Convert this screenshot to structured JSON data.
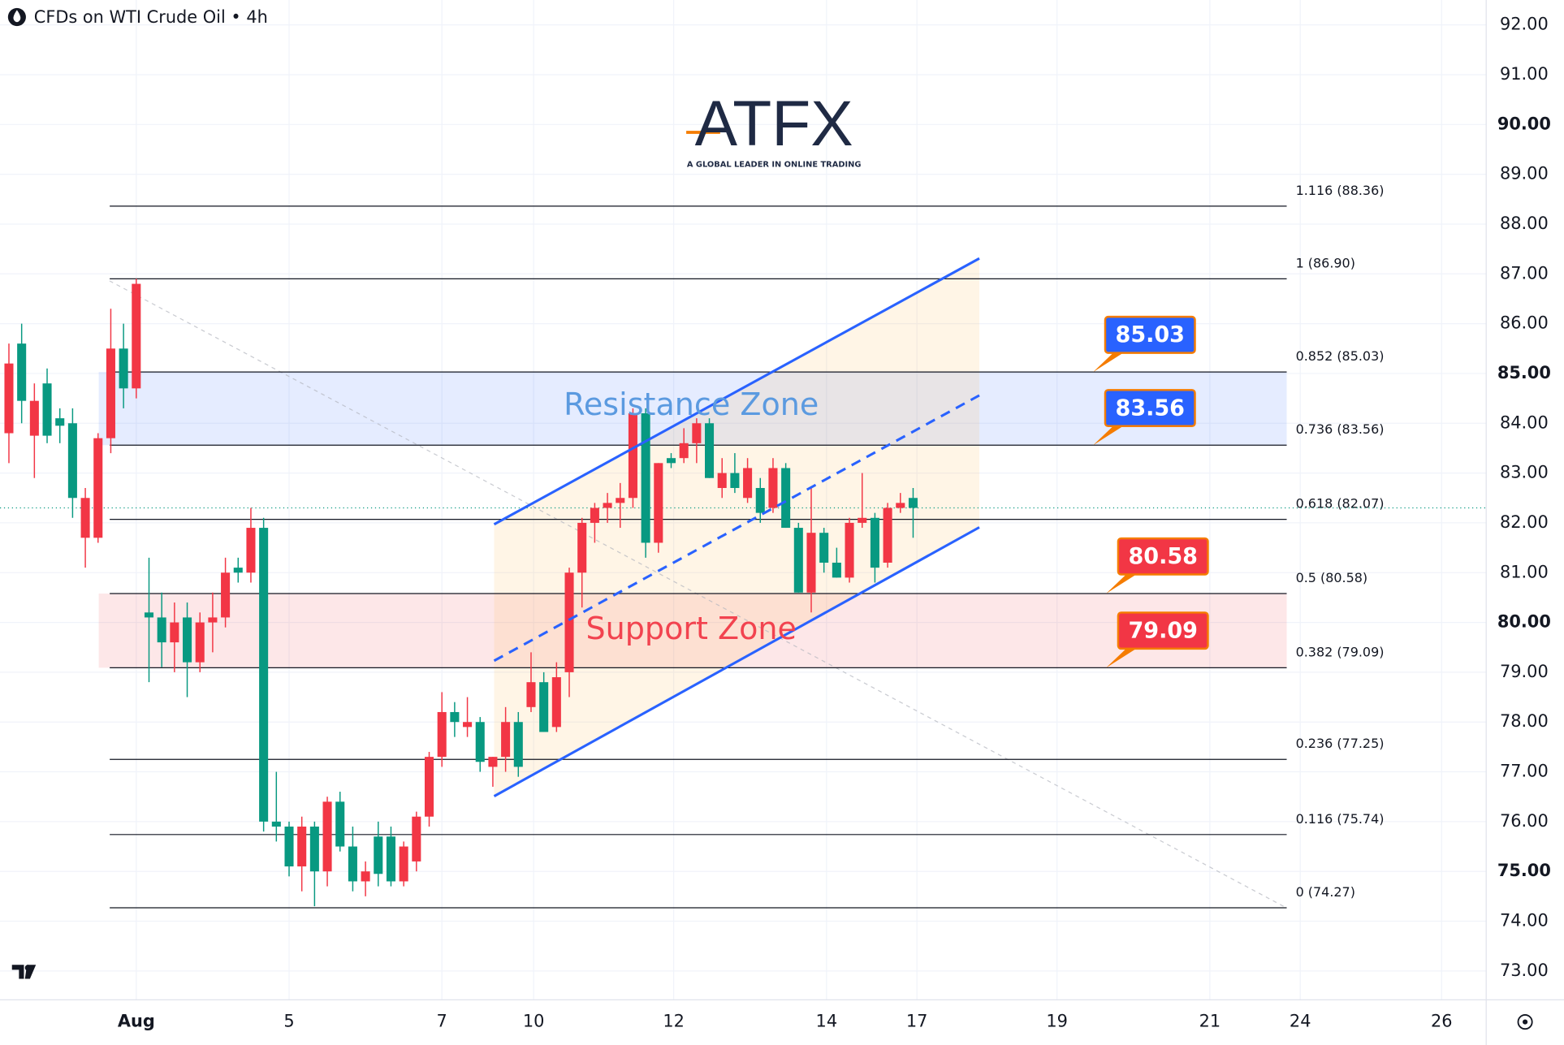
{
  "chart_data": {
    "type": "candlestick",
    "title": "CFDs on WTI Crude Oil • 4h",
    "logo": {
      "name": "ATFX",
      "tagline": "A GLOBAL LEADER IN ONLINE TRADING"
    },
    "up_color": "#f23645",
    "down_color": "#089981",
    "open": [
      83.8,
      85.6,
      83.75,
      84.8,
      84.1,
      84.0,
      81.7,
      81.7,
      83.7,
      85.5,
      84.7,
      80.2,
      80.1,
      79.6,
      80.1,
      79.2,
      80.0,
      80.1,
      81.1,
      81.0,
      81.9,
      76.0,
      75.9,
      75.1,
      75.9,
      75.0,
      76.4,
      75.5,
      74.8,
      75.7,
      75.7,
      74.8,
      75.2,
      76.1,
      77.3,
      78.2,
      77.9,
      78.0,
      77.1,
      77.3,
      78.0,
      78.3,
      78.8,
      77.9,
      79.0,
      81.0,
      82.0,
      82.3,
      82.4,
      82.5,
      84.2,
      81.6,
      83.3,
      83.3,
      83.6,
      84.0,
      82.7,
      83.0,
      82.5,
      82.7,
      82.3,
      83.1,
      81.9,
      80.6,
      81.8,
      81.2,
      80.9,
      82.0,
      82.1,
      81.2,
      82.3,
      82.5
    ],
    "high": [
      85.6,
      86.0,
      84.8,
      85.1,
      84.3,
      84.3,
      82.7,
      83.8,
      86.3,
      86.0,
      86.9,
      81.3,
      80.6,
      80.4,
      80.4,
      80.2,
      80.6,
      81.3,
      81.3,
      82.3,
      82.1,
      77.0,
      76.0,
      76.1,
      76.0,
      76.5,
      76.6,
      75.9,
      75.2,
      76.0,
      75.9,
      75.6,
      76.2,
      77.4,
      78.6,
      78.4,
      78.5,
      78.1,
      77.3,
      78.3,
      78.2,
      79.4,
      79.0,
      79.2,
      81.1,
      82.1,
      82.4,
      82.6,
      82.8,
      84.3,
      84.3,
      83.2,
      83.4,
      83.9,
      84.1,
      84.1,
      83.3,
      83.4,
      83.3,
      82.9,
      83.3,
      83.2,
      82.0,
      82.7,
      81.9,
      81.5,
      82.1,
      83.0,
      82.2,
      82.4,
      82.6,
      82.7
    ],
    "low": [
      83.2,
      84.0,
      82.9,
      83.6,
      83.6,
      82.1,
      81.1,
      81.6,
      83.4,
      84.3,
      84.5,
      78.8,
      79.1,
      79.0,
      78.5,
      79.0,
      79.4,
      79.9,
      80.8,
      80.8,
      75.8,
      75.6,
      74.9,
      74.6,
      74.3,
      74.7,
      75.4,
      74.6,
      74.5,
      74.7,
      74.7,
      74.7,
      75.0,
      75.9,
      77.1,
      77.7,
      77.7,
      77.0,
      76.7,
      77.0,
      76.9,
      78.2,
      77.8,
      77.8,
      78.5,
      80.3,
      81.6,
      82.0,
      81.9,
      82.3,
      81.3,
      81.4,
      83.1,
      83.2,
      83.2,
      82.9,
      82.5,
      82.6,
      82.4,
      82.0,
      82.2,
      81.9,
      80.6,
      80.2,
      81.0,
      80.9,
      80.8,
      81.9,
      80.8,
      81.1,
      82.2,
      81.7
    ],
    "close": [
      85.2,
      84.45,
      84.45,
      83.75,
      83.95,
      82.5,
      82.5,
      83.7,
      85.5,
      84.7,
      86.8,
      80.1,
      79.6,
      80.0,
      79.2,
      80.0,
      80.1,
      81.0,
      81.0,
      81.9,
      76.0,
      75.9,
      75.1,
      75.9,
      75.0,
      76.4,
      75.5,
      74.8,
      75.0,
      74.95,
      74.8,
      75.5,
      76.1,
      77.3,
      78.2,
      78.0,
      78.0,
      77.2,
      77.3,
      78.0,
      77.1,
      78.8,
      77.8,
      78.9,
      81.0,
      82.0,
      82.3,
      82.4,
      82.5,
      84.2,
      81.6,
      83.2,
      83.2,
      83.6,
      84.0,
      82.9,
      83.0,
      82.7,
      83.1,
      82.2,
      83.1,
      81.9,
      80.6,
      81.8,
      81.2,
      80.9,
      82.0,
      82.1,
      81.1,
      82.3,
      82.4,
      82.3
    ],
    "last_price": 82.3,
    "fib_levels": [
      {
        "value": 88.36,
        "label": "1.116 (88.36)"
      },
      {
        "value": 86.9,
        "label": "1 (86.90)"
      },
      {
        "value": 85.03,
        "label": "0.852 (85.03)"
      },
      {
        "value": 83.56,
        "label": "0.736 (83.56)"
      },
      {
        "value": 82.07,
        "label": "0.618 (82.07)"
      },
      {
        "value": 80.58,
        "label": "0.5 (80.58)"
      },
      {
        "value": 79.09,
        "label": "0.382 (79.09)"
      },
      {
        "value": 77.25,
        "label": "0.236 (77.25)"
      },
      {
        "value": 75.74,
        "label": "0.116 (75.74)"
      },
      {
        "value": 74.27,
        "label": "0 (74.27)"
      }
    ],
    "zones": [
      {
        "name": "Resistance Zone",
        "range": [
          83.56,
          85.03
        ],
        "color": "#2962ff",
        "label_color": "#5b9ae0"
      },
      {
        "name": "Support Zone",
        "range": [
          79.09,
          80.58
        ],
        "color": "#f23645",
        "label_color": "#f2434f"
      }
    ],
    "callouts": [
      {
        "values": 85.03,
        "color": "#2962ff"
      },
      {
        "values": 83.56,
        "color": "#2962ff"
      },
      {
        "values": 80.58,
        "color": "#f23645"
      },
      {
        "values": 79.09,
        "color": "#f23645"
      }
    ],
    "channel": {
      "x": [
        38.1,
        76.2
      ],
      "upper": [
        81.97,
        87.31
      ],
      "middle": [
        79.23,
        84.56
      ],
      "lower": [
        76.51,
        81.91
      ],
      "color": "#2962ff"
    },
    "trendline": {
      "x": [
        7.9,
        100.3
      ],
      "y": [
        86.86,
        74.27
      ]
    },
    "xlim": [
      -0.7,
      116
    ],
    "ylim": [
      72.42,
      92.5
    ],
    "xticks": [
      {
        "value": 10,
        "label": "Aug"
      },
      {
        "value": 22,
        "label": "5"
      },
      {
        "value": 34,
        "label": "7"
      },
      {
        "value": 41.2,
        "label": "10"
      },
      {
        "value": 52.2,
        "label": "12"
      },
      {
        "value": 64.2,
        "label": "14"
      },
      {
        "value": 71.3,
        "label": "17"
      },
      {
        "value": 82.3,
        "label": "19"
      },
      {
        "value": 94.3,
        "label": "21"
      },
      {
        "value": 101.4,
        "label": "24"
      },
      {
        "value": 112.5,
        "label": "26"
      }
    ],
    "yticks": [
      {
        "value": 73,
        "label": "73.00"
      },
      {
        "value": 74,
        "label": "74.00"
      },
      {
        "value": 75,
        "label": "75.00"
      },
      {
        "value": 76,
        "label": "76.00"
      },
      {
        "value": 77,
        "label": "77.00"
      },
      {
        "value": 78,
        "label": "78.00"
      },
      {
        "value": 79,
        "label": "79.00"
      },
      {
        "value": 80,
        "label": "80.00"
      },
      {
        "value": 81,
        "label": "81.00"
      },
      {
        "value": 82,
        "label": "82.00"
      },
      {
        "value": 83,
        "label": "83.00"
      },
      {
        "value": 84,
        "label": "84.00"
      },
      {
        "value": 85,
        "label": "85.00"
      },
      {
        "value": 86,
        "label": "86.00"
      },
      {
        "value": 87,
        "label": "87.00"
      },
      {
        "value": 88,
        "label": "88.00"
      },
      {
        "value": 89,
        "label": "89.00"
      },
      {
        "value": 90,
        "label": "90.00"
      },
      {
        "value": 91,
        "label": "91.00"
      },
      {
        "value": 92,
        "label": "92.00"
      }
    ],
    "grid": true
  }
}
